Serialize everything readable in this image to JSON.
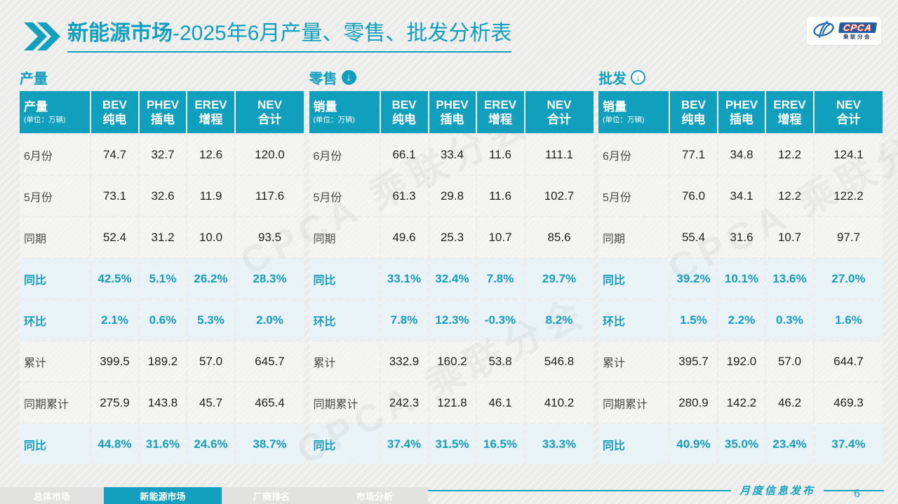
{
  "title": {
    "bold": "新能源市场",
    "rest": "-2025年6月产量、零售、批发分析表"
  },
  "logo": {
    "name": "CPCA",
    "subtitle": "乘联分会"
  },
  "watermark": "CPCA 乘联分会",
  "columns": [
    {
      "l1": "BEV",
      "l2": "纯电"
    },
    {
      "l1": "PHEV",
      "l2": "插电"
    },
    {
      "l1": "EREV",
      "l2": "增程"
    },
    {
      "l1": "NEV",
      "l2": "合计"
    }
  ],
  "tables": [
    {
      "section": "产量",
      "arrow": "none",
      "head": "产量",
      "unit": "(单位：万辆)",
      "rows": [
        {
          "label": "6月份",
          "type": "normal",
          "values": [
            "74.7",
            "32.7",
            "12.6",
            "120.0"
          ]
        },
        {
          "label": "5月份",
          "type": "normal",
          "values": [
            "73.1",
            "32.6",
            "11.9",
            "117.6"
          ]
        },
        {
          "label": "同期",
          "type": "normal",
          "values": [
            "52.4",
            "31.2",
            "10.0",
            "93.5"
          ]
        },
        {
          "label": "同比",
          "type": "ratio",
          "values": [
            "42.5%",
            "5.1%",
            "26.2%",
            "28.3%"
          ]
        },
        {
          "label": "环比",
          "type": "ratio",
          "values": [
            "2.1%",
            "0.6%",
            "5.3%",
            "2.0%"
          ]
        },
        {
          "label": "累计",
          "type": "normal",
          "values": [
            "399.5",
            "189.2",
            "57.0",
            "645.7"
          ]
        },
        {
          "label": "同期累计",
          "type": "normal",
          "values": [
            "275.9",
            "143.8",
            "45.7",
            "465.4"
          ]
        },
        {
          "label": "同比",
          "type": "ratio",
          "values": [
            "44.8%",
            "31.6%",
            "24.6%",
            "38.7%"
          ]
        }
      ]
    },
    {
      "section": "零售",
      "arrow": "solid",
      "head": "销量",
      "unit": "(单位：万辆)",
      "rows": [
        {
          "label": "6月份",
          "type": "normal",
          "values": [
            "66.1",
            "33.4",
            "11.6",
            "111.1"
          ]
        },
        {
          "label": "5月份",
          "type": "normal",
          "values": [
            "61.3",
            "29.8",
            "11.6",
            "102.7"
          ]
        },
        {
          "label": "同期",
          "type": "normal",
          "values": [
            "49.6",
            "25.3",
            "10.7",
            "85.6"
          ]
        },
        {
          "label": "同比",
          "type": "ratio",
          "values": [
            "33.1%",
            "32.4%",
            "7.8%",
            "29.7%"
          ]
        },
        {
          "label": "环比",
          "type": "ratio",
          "values": [
            "7.8%",
            "12.3%",
            "-0.3%",
            "8.2%"
          ]
        },
        {
          "label": "累计",
          "type": "normal",
          "values": [
            "332.9",
            "160.2",
            "53.8",
            "546.8"
          ]
        },
        {
          "label": "同期累计",
          "type": "normal",
          "values": [
            "242.3",
            "121.8",
            "46.1",
            "410.2"
          ]
        },
        {
          "label": "同比",
          "type": "ratio",
          "values": [
            "37.4%",
            "31.5%",
            "16.5%",
            "33.3%"
          ]
        }
      ]
    },
    {
      "section": "批发",
      "arrow": "outline",
      "head": "销量",
      "unit": "(单位：万辆)",
      "rows": [
        {
          "label": "6月份",
          "type": "normal",
          "values": [
            "77.1",
            "34.8",
            "12.2",
            "124.1"
          ]
        },
        {
          "label": "5月份",
          "type": "normal",
          "values": [
            "76.0",
            "34.1",
            "12.2",
            "122.2"
          ]
        },
        {
          "label": "同期",
          "type": "normal",
          "values": [
            "55.4",
            "31.6",
            "10.7",
            "97.7"
          ]
        },
        {
          "label": "同比",
          "type": "ratio",
          "values": [
            "39.2%",
            "10.1%",
            "13.6%",
            "27.0%"
          ]
        },
        {
          "label": "环比",
          "type": "ratio",
          "values": [
            "1.5%",
            "2.2%",
            "0.3%",
            "1.6%"
          ]
        },
        {
          "label": "累计",
          "type": "normal",
          "values": [
            "395.7",
            "192.0",
            "57.0",
            "644.7"
          ]
        },
        {
          "label": "同期累计",
          "type": "normal",
          "values": [
            "280.9",
            "142.2",
            "46.2",
            "469.3"
          ]
        },
        {
          "label": "同比",
          "type": "ratio",
          "values": [
            "40.9%",
            "35.0%",
            "23.4%",
            "37.4%"
          ]
        }
      ]
    }
  ],
  "footer": {
    "note": "月度信息发布",
    "page": "6",
    "tabs": [
      {
        "label": "总体市场",
        "active": false
      },
      {
        "label": "新能源市场",
        "active": true
      },
      {
        "label": "厂商排名",
        "active": false
      },
      {
        "label": "市场分析",
        "active": false
      }
    ]
  }
}
